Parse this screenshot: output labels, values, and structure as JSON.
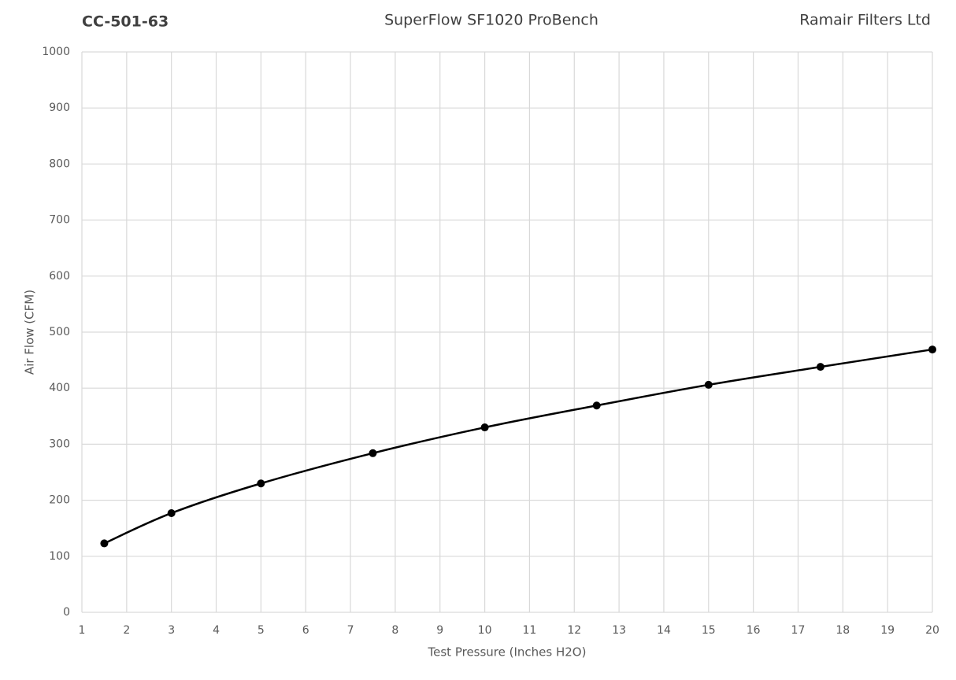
{
  "chart_data": {
    "type": "line",
    "title": "SuperFlow SF1020 ProBench",
    "header_left": "CC-501-63",
    "header_right": "Ramair Filters Ltd",
    "x_label": "Test Pressure (Inches H2O)",
    "y_label": "Air Flow (CFM)",
    "x": [
      1.5,
      3,
      5,
      7.5,
      10,
      12.5,
      15,
      17.5,
      20
    ],
    "series": [
      {
        "name": "Air Flow",
        "color": "#000000",
        "values": [
          123,
          177,
          230,
          284,
          330,
          369,
          406,
          438,
          469
        ]
      }
    ],
    "xlim": [
      1,
      20
    ],
    "xticks": [
      1,
      2,
      3,
      4,
      5,
      6,
      7,
      8,
      9,
      10,
      11,
      12,
      13,
      14,
      15,
      16,
      17,
      18,
      19,
      20
    ],
    "ylim": [
      0,
      1000
    ],
    "yticks": [
      0,
      100,
      200,
      300,
      400,
      500,
      600,
      700,
      800,
      900,
      1000
    ],
    "grid": true,
    "smooth": true,
    "markers": true
  }
}
